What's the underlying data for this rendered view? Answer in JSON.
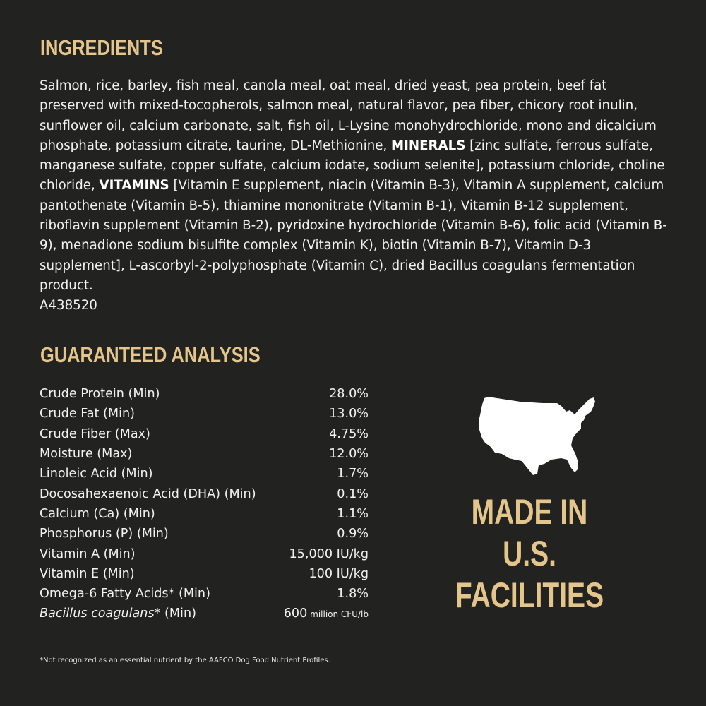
{
  "ingredients": {
    "heading": "INGREDIENTS",
    "text_part1": "Salmon, rice, barley, fish meal, canola meal, oat meal, dried yeast, pea protein, beef fat preserved with mixed-tocopherols, salmon meal, natural flavor, pea fiber, chicory root inulin, sunflower oil, calcium carbonate, salt, fish oil, L-Lysine monohydrochloride, mono and dicalcium phosphate, potassium citrate, taurine, DL-Methionine, ",
    "minerals_label": "MINERALS",
    "text_part2": " [zinc sulfate, ferrous sulfate, manganese sulfate, copper sulfate, calcium iodate, sodium selenite], potassium chloride, choline chloride, ",
    "vitamins_label": "VITAMINS",
    "text_part3": " [Vitamin E supplement, niacin (Vitamin B-3), Vitamin A supplement, calcium pantothenate (Vitamin B-5), thiamine mononitrate (Vitamin B-1), Vitamin B-12 supplement, riboflavin supplement (Vitamin B-2), pyridoxine hydrochloride (Vitamin B-6), folic acid (Vitamin B-9), menadione sodium bisulfite complex (Vitamin K), biotin (Vitamin B-7), Vitamin D-3 supplement], L-ascorbyl-2-polyphosphate (Vitamin C), dried Bacillus coagulans fermentation product.",
    "code": "A438520"
  },
  "analysis": {
    "heading": "GUARANTEED ANALYSIS",
    "rows": [
      {
        "name": "Crude Protein (Min)",
        "value": "28.0%"
      },
      {
        "name": "Crude Fat (Min)",
        "value": "13.0%"
      },
      {
        "name": "Crude Fiber (Max)",
        "value": "4.75%"
      },
      {
        "name": "Moisture (Max)",
        "value": "12.0%"
      },
      {
        "name": "Linoleic Acid (Min)",
        "value": "1.7%"
      },
      {
        "name": "Docosahexaenoic Acid (DHA) (Min)",
        "value": "0.1%"
      },
      {
        "name": "Calcium (Ca) (Min)",
        "value": "1.1%"
      },
      {
        "name": "Phosphorus (P) (Min)",
        "value": "0.9%"
      },
      {
        "name": "Vitamin A (Min)",
        "value": "15,000 IU/kg"
      },
      {
        "name": "Vitamin E (Min)",
        "value": "100 IU/kg"
      },
      {
        "name": "Omega-6 Fatty Acids* (Min)",
        "value": "1.8%"
      }
    ],
    "last_row": {
      "name_italic": "Bacillus coagulans",
      "name_rest": "* (Min)",
      "value_number": "600",
      "value_unit": " million CFU/lb"
    },
    "footnote": "*Not recognized as an essential nutrient by the AAFCO Dog Food Nutrient Profiles."
  },
  "badge": {
    "icon": "usa-map-icon",
    "line1": "MADE IN",
    "line2": "U.S.",
    "line3": "FACILITIES"
  },
  "colors": {
    "background": "#222321",
    "accent": "#e4c58b",
    "text": "#f2f2f2"
  }
}
